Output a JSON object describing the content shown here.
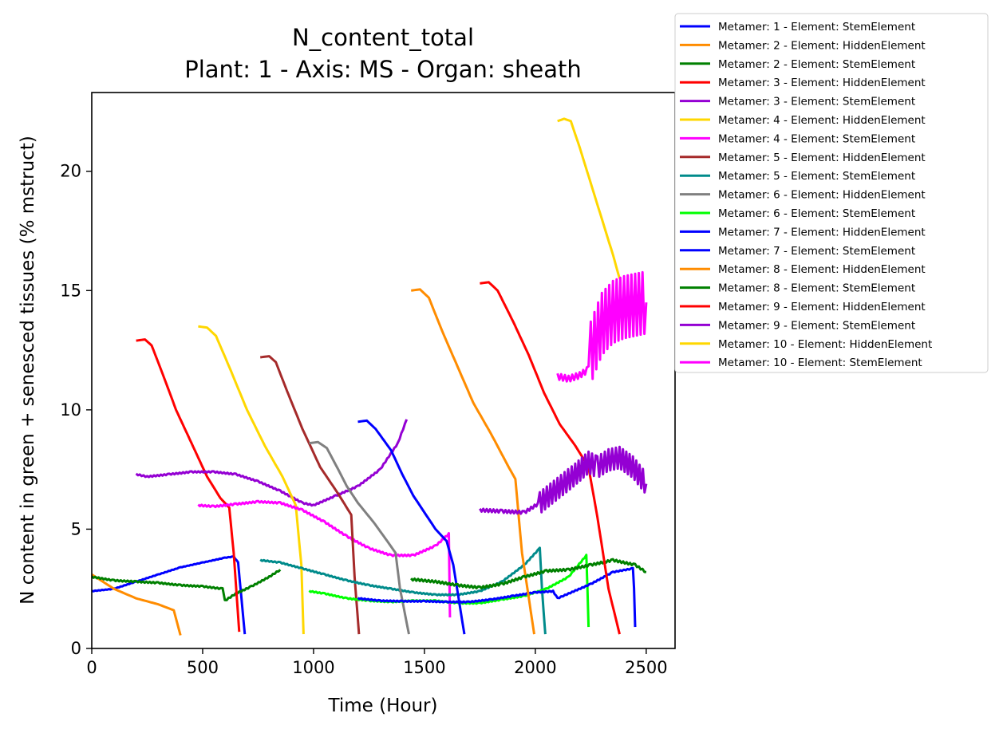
{
  "chart_data": {
    "type": "line",
    "title": "N_content_total",
    "subtitle": "Plant: 1 - Axis: MS - Organ: sheath",
    "xlabel": "Time (Hour)",
    "ylabel": "N content in green + senesced tissues (% mstruct)",
    "xlim": [
      0,
      2630
    ],
    "ylim": [
      0,
      23.3
    ],
    "xticks": [
      0,
      500,
      1000,
      1500,
      2000,
      2500
    ],
    "yticks": [
      0,
      5,
      10,
      15,
      20
    ],
    "grid": false,
    "legend_position": "outside-top-right",
    "series": [
      {
        "name": "Metamer: 1 - Element: StemElement",
        "color": "#0000ff",
        "wiggle": 0.02,
        "points": [
          [
            0,
            2.4
          ],
          [
            100,
            2.5
          ],
          [
            200,
            2.8
          ],
          [
            300,
            3.1
          ],
          [
            400,
            3.4
          ],
          [
            500,
            3.6
          ],
          [
            600,
            3.8
          ],
          [
            640,
            3.85
          ],
          [
            660,
            3.6
          ],
          [
            690,
            0.6
          ]
        ]
      },
      {
        "name": "Metamer: 2 - Element: HiddenElement",
        "color": "#ff8c00",
        "wiggle": 0,
        "points": [
          [
            0,
            3.1
          ],
          [
            50,
            2.8
          ],
          [
            100,
            2.5
          ],
          [
            200,
            2.1
          ],
          [
            300,
            1.85
          ],
          [
            370,
            1.6
          ],
          [
            400,
            0.55
          ]
        ]
      },
      {
        "name": "Metamer: 2 - Element: StemElement",
        "color": "#008000",
        "wiggle": 0.05,
        "points": [
          [
            0,
            3.0
          ],
          [
            100,
            2.85
          ],
          [
            200,
            2.8
          ],
          [
            300,
            2.75
          ],
          [
            400,
            2.65
          ],
          [
            500,
            2.6
          ],
          [
            590,
            2.5
          ],
          [
            600,
            2.0
          ],
          [
            650,
            2.3
          ],
          [
            720,
            2.6
          ],
          [
            800,
            3.0
          ],
          [
            850,
            3.3
          ]
        ]
      },
      {
        "name": "Metamer: 3 - Element: HiddenElement",
        "color": "#ff0000",
        "wiggle": 0,
        "points": [
          [
            200,
            12.9
          ],
          [
            240,
            12.95
          ],
          [
            270,
            12.7
          ],
          [
            320,
            11.5
          ],
          [
            380,
            10.0
          ],
          [
            450,
            8.6
          ],
          [
            520,
            7.2
          ],
          [
            580,
            6.3
          ],
          [
            620,
            5.9
          ],
          [
            640,
            4.0
          ],
          [
            665,
            0.7
          ]
        ]
      },
      {
        "name": "Metamer: 3 - Element: StemElement",
        "color": "#9400d3",
        "wiggle": 0.05,
        "points": [
          [
            200,
            7.3
          ],
          [
            250,
            7.2
          ],
          [
            350,
            7.3
          ],
          [
            450,
            7.4
          ],
          [
            550,
            7.4
          ],
          [
            650,
            7.3
          ],
          [
            750,
            7.0
          ],
          [
            850,
            6.6
          ],
          [
            950,
            6.1
          ],
          [
            1000,
            6.0
          ],
          [
            1100,
            6.4
          ],
          [
            1200,
            6.8
          ],
          [
            1300,
            7.5
          ],
          [
            1380,
            8.6
          ],
          [
            1420,
            9.6
          ]
        ]
      },
      {
        "name": "Metamer: 4 - Element: HiddenElement",
        "color": "#ffd700",
        "wiggle": 0,
        "points": [
          [
            480,
            13.5
          ],
          [
            520,
            13.45
          ],
          [
            560,
            13.1
          ],
          [
            620,
            11.8
          ],
          [
            700,
            10.0
          ],
          [
            780,
            8.5
          ],
          [
            860,
            7.2
          ],
          [
            920,
            6.0
          ],
          [
            945,
            3.5
          ],
          [
            955,
            0.6
          ]
        ]
      },
      {
        "name": "Metamer: 4 - Element: StemElement",
        "color": "#ff00ff",
        "wiggle": 0.06,
        "points": [
          [
            480,
            6.0
          ],
          [
            550,
            5.95
          ],
          [
            650,
            6.05
          ],
          [
            750,
            6.15
          ],
          [
            850,
            6.1
          ],
          [
            950,
            5.8
          ],
          [
            1050,
            5.3
          ],
          [
            1150,
            4.7
          ],
          [
            1250,
            4.2
          ],
          [
            1350,
            3.9
          ],
          [
            1450,
            3.9
          ],
          [
            1550,
            4.3
          ],
          [
            1610,
            4.8
          ],
          [
            1615,
            1.3
          ]
        ]
      },
      {
        "name": "Metamer: 5 - Element: HiddenElement",
        "color": "#a52a2a",
        "wiggle": 0,
        "points": [
          [
            760,
            12.2
          ],
          [
            800,
            12.25
          ],
          [
            830,
            12.0
          ],
          [
            880,
            10.8
          ],
          [
            950,
            9.2
          ],
          [
            1030,
            7.6
          ],
          [
            1110,
            6.5
          ],
          [
            1170,
            5.6
          ],
          [
            1185,
            3.0
          ],
          [
            1205,
            0.6
          ]
        ]
      },
      {
        "name": "Metamer: 5 - Element: StemElement",
        "color": "#008b8b",
        "wiggle": 0.04,
        "points": [
          [
            760,
            3.7
          ],
          [
            850,
            3.6
          ],
          [
            950,
            3.35
          ],
          [
            1050,
            3.1
          ],
          [
            1150,
            2.85
          ],
          [
            1250,
            2.65
          ],
          [
            1350,
            2.5
          ],
          [
            1450,
            2.35
          ],
          [
            1550,
            2.25
          ],
          [
            1650,
            2.25
          ],
          [
            1750,
            2.4
          ],
          [
            1850,
            2.8
          ],
          [
            1950,
            3.5
          ],
          [
            2010,
            4.1
          ],
          [
            2020,
            4.2
          ],
          [
            2030,
            2.5
          ],
          [
            2045,
            0.6
          ]
        ]
      },
      {
        "name": "Metamer: 6 - Element: HiddenElement",
        "color": "#808080",
        "wiggle": 0,
        "points": [
          [
            980,
            8.6
          ],
          [
            1020,
            8.65
          ],
          [
            1060,
            8.4
          ],
          [
            1100,
            7.7
          ],
          [
            1150,
            6.8
          ],
          [
            1200,
            6.1
          ],
          [
            1270,
            5.3
          ],
          [
            1340,
            4.4
          ],
          [
            1370,
            4.0
          ],
          [
            1390,
            2.5
          ],
          [
            1430,
            0.6
          ]
        ]
      },
      {
        "name": "Metamer: 6 - Element: StemElement",
        "color": "#00ff00",
        "wiggle": 0.04,
        "points": [
          [
            980,
            2.4
          ],
          [
            1050,
            2.3
          ],
          [
            1150,
            2.1
          ],
          [
            1250,
            2.0
          ],
          [
            1350,
            1.95
          ],
          [
            1450,
            2.0
          ],
          [
            1550,
            2.0
          ],
          [
            1650,
            1.9
          ],
          [
            1750,
            1.9
          ],
          [
            1850,
            2.05
          ],
          [
            1950,
            2.2
          ],
          [
            2050,
            2.5
          ],
          [
            2150,
            3.0
          ],
          [
            2230,
            3.9
          ],
          [
            2235,
            2.5
          ],
          [
            2240,
            0.9
          ]
        ]
      },
      {
        "name": "Metamer: 7 - Element: HiddenElement",
        "color": "#0000ff",
        "wiggle": 0,
        "points": [
          [
            1200,
            9.5
          ],
          [
            1240,
            9.55
          ],
          [
            1280,
            9.2
          ],
          [
            1350,
            8.3
          ],
          [
            1400,
            7.3
          ],
          [
            1450,
            6.4
          ],
          [
            1500,
            5.7
          ],
          [
            1550,
            5.0
          ],
          [
            1600,
            4.5
          ],
          [
            1630,
            3.5
          ],
          [
            1680,
            0.6
          ]
        ]
      },
      {
        "name": "Metamer: 7 - Element: StemElement",
        "color": "#0000ff",
        "wiggle": 0.04,
        "points": [
          [
            1200,
            2.1
          ],
          [
            1300,
            2.0
          ],
          [
            1400,
            1.98
          ],
          [
            1500,
            1.98
          ],
          [
            1600,
            1.95
          ],
          [
            1700,
            1.95
          ],
          [
            1800,
            2.05
          ],
          [
            1900,
            2.2
          ],
          [
            2000,
            2.35
          ],
          [
            2080,
            2.4
          ],
          [
            2100,
            2.1
          ],
          [
            2150,
            2.3
          ],
          [
            2250,
            2.7
          ],
          [
            2350,
            3.2
          ],
          [
            2440,
            3.35
          ],
          [
            2445,
            2.5
          ],
          [
            2450,
            0.9
          ]
        ]
      },
      {
        "name": "Metamer: 8 - Element: HiddenElement",
        "color": "#ff8c00",
        "wiggle": 0,
        "points": [
          [
            1440,
            15.0
          ],
          [
            1480,
            15.05
          ],
          [
            1520,
            14.7
          ],
          [
            1580,
            13.3
          ],
          [
            1650,
            11.8
          ],
          [
            1720,
            10.3
          ],
          [
            1800,
            9.0
          ],
          [
            1880,
            7.6
          ],
          [
            1910,
            7.1
          ],
          [
            1940,
            4.0
          ],
          [
            1995,
            0.6
          ]
        ]
      },
      {
        "name": "Metamer: 8 - Element: StemElement",
        "color": "#008000",
        "wiggle": 0.08,
        "points": [
          [
            1440,
            2.9
          ],
          [
            1550,
            2.8
          ],
          [
            1650,
            2.65
          ],
          [
            1750,
            2.55
          ],
          [
            1850,
            2.7
          ],
          [
            1950,
            3.0
          ],
          [
            2050,
            3.25
          ],
          [
            2150,
            3.3
          ],
          [
            2250,
            3.5
          ],
          [
            2350,
            3.7
          ],
          [
            2450,
            3.5
          ],
          [
            2500,
            3.2
          ]
        ]
      },
      {
        "name": "Metamer: 9 - Element: HiddenElement",
        "color": "#ff0000",
        "wiggle": 0,
        "points": [
          [
            1750,
            15.3
          ],
          [
            1790,
            15.35
          ],
          [
            1830,
            15.0
          ],
          [
            1900,
            13.7
          ],
          [
            1970,
            12.3
          ],
          [
            2040,
            10.7
          ],
          [
            2110,
            9.4
          ],
          [
            2180,
            8.5
          ],
          [
            2240,
            7.6
          ],
          [
            2280,
            5.5
          ],
          [
            2330,
            2.5
          ],
          [
            2380,
            0.6
          ]
        ]
      },
      {
        "name": "Metamer: 9 - Element: StemElement",
        "color": "#9400d3",
        "wiggle": 0.12,
        "osc_after": 2020,
        "osc_amp": 0.9,
        "points": [
          [
            1750,
            5.8
          ],
          [
            1850,
            5.75
          ],
          [
            1950,
            5.7
          ],
          [
            2020,
            6.1
          ],
          [
            2100,
            6.7
          ],
          [
            2180,
            7.3
          ],
          [
            2240,
            7.8
          ],
          [
            2280,
            7.6
          ],
          [
            2330,
            7.9
          ],
          [
            2380,
            8.0
          ],
          [
            2440,
            7.6
          ],
          [
            2500,
            6.9
          ]
        ]
      },
      {
        "name": "Metamer: 10 - Element: HiddenElement",
        "color": "#ffd700",
        "wiggle": 0,
        "points": [
          [
            2100,
            22.1
          ],
          [
            2130,
            22.2
          ],
          [
            2160,
            22.1
          ],
          [
            2200,
            21.0
          ],
          [
            2250,
            19.5
          ],
          [
            2300,
            18.0
          ],
          [
            2350,
            16.5
          ],
          [
            2380,
            15.5
          ]
        ]
      },
      {
        "name": "Metamer: 10 - Element: StemElement",
        "color": "#ff00ff",
        "wiggle": 0.25,
        "osc_after": 2250,
        "osc_amp": 2.6,
        "points": [
          [
            2100,
            11.4
          ],
          [
            2150,
            11.3
          ],
          [
            2200,
            11.45
          ],
          [
            2240,
            11.7
          ],
          [
            2250,
            12.4
          ],
          [
            2300,
            13.6
          ],
          [
            2350,
            14.1
          ],
          [
            2400,
            14.3
          ],
          [
            2450,
            14.4
          ],
          [
            2500,
            14.5
          ]
        ]
      }
    ]
  }
}
